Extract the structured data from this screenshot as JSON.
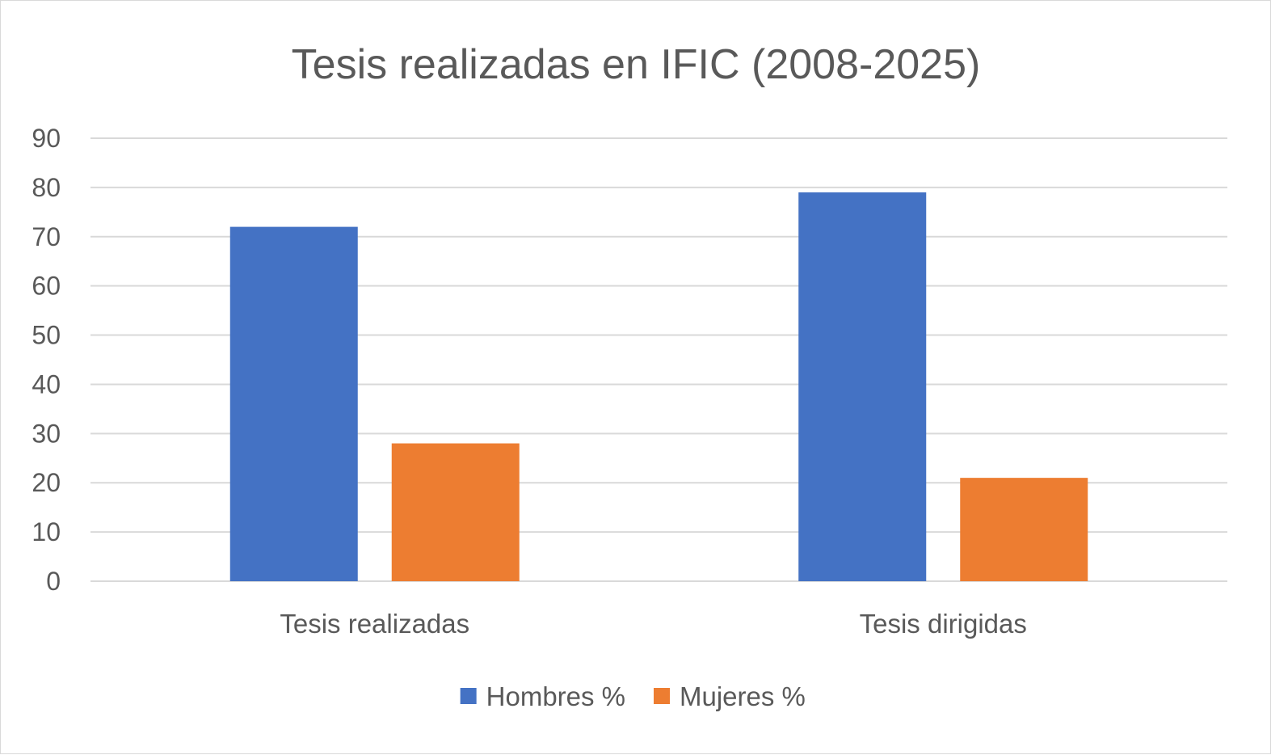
{
  "chart_data": {
    "type": "bar",
    "title": "Tesis realizadas en IFIC (2008-2025)",
    "xlabel": "",
    "ylabel": "",
    "categories": [
      "Tesis realizadas",
      "Tesis dirigidas"
    ],
    "series": [
      {
        "name": "Hombres %",
        "values": [
          72,
          79
        ],
        "color": "#4472c4"
      },
      {
        "name": "Mujeres %",
        "values": [
          28,
          21
        ],
        "color": "#ed7d31"
      }
    ],
    "ylim": [
      0,
      90
    ],
    "yticks": [
      0,
      10,
      20,
      30,
      40,
      50,
      60,
      70,
      80,
      90
    ],
    "grid": true,
    "legend_position": "bottom"
  }
}
